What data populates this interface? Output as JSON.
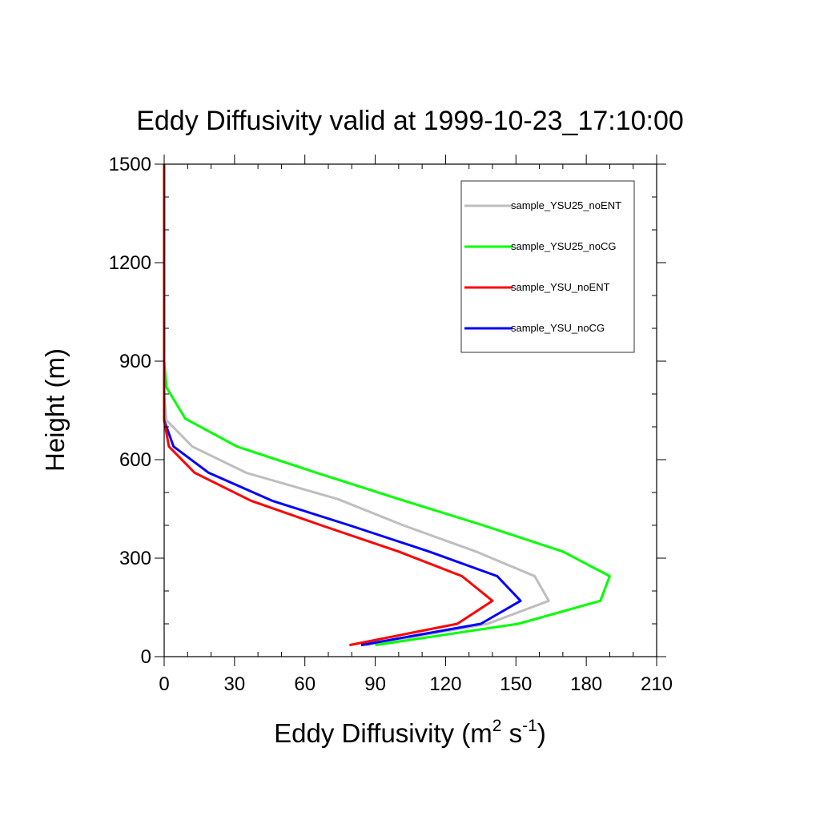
{
  "chart_data": {
    "type": "line",
    "title": "Eddy Diffusivity valid at 1999-10-23_17:10:00",
    "xlabel": {
      "base": "Eddy Diffusivity (m",
      "sup1": "2",
      "mid": " s",
      "sup2": "-1",
      "end": ")"
    },
    "ylabel": "Height (m)",
    "xlim": [
      0,
      210
    ],
    "ylim": [
      0,
      1500
    ],
    "xticks": [
      "0",
      "30",
      "60",
      "90",
      "120",
      "150",
      "180",
      "210"
    ],
    "yticks": [
      "0",
      "300",
      "600",
      "900",
      "1200",
      "1500"
    ],
    "grid": false,
    "legend_position": "top-right",
    "series": [
      {
        "name": "sample_YSU25_noENT",
        "color": "#bebebe",
        "x": [
          86,
          138,
          164,
          158,
          133,
          102,
          74,
          35,
          12,
          1,
          0,
          0
        ],
        "y": [
          35,
          100,
          170,
          245,
          320,
          400,
          480,
          560,
          640,
          720,
          800,
          1500
        ]
      },
      {
        "name": "sample_YSU25_noCG",
        "color": "#00ff00",
        "x": [
          90,
          151,
          186,
          190,
          170,
          136,
          100,
          65,
          31,
          9,
          1,
          0,
          0
        ],
        "y": [
          35,
          100,
          170,
          245,
          320,
          400,
          480,
          560,
          640,
          725,
          820,
          900,
          1500
        ]
      },
      {
        "name": "sample_YSU_noCG",
        "color": "#0000ff",
        "x": [
          84,
          135,
          152,
          142,
          113,
          79,
          46,
          19,
          4,
          0,
          0,
          0
        ],
        "y": [
          35,
          100,
          170,
          245,
          320,
          400,
          475,
          560,
          640,
          720,
          800,
          1500
        ]
      },
      {
        "name": "sample_YSU_noENT",
        "color": "#ff0000",
        "x": [
          79,
          125,
          140,
          127,
          100,
          67,
          37,
          13,
          2,
          0,
          0,
          0
        ],
        "y": [
          35,
          100,
          170,
          245,
          320,
          400,
          475,
          560,
          640,
          720,
          800,
          1500
        ]
      }
    ],
    "legend": [
      {
        "label": "sample_YSU25_noENT",
        "color": "#bebebe"
      },
      {
        "label": "sample_YSU25_noCG",
        "color": "#00ff00"
      },
      {
        "label": "sample_YSU_noENT",
        "color": "#ff0000"
      },
      {
        "label": "sample_YSU_noCG",
        "color": "#0000ff"
      }
    ]
  }
}
